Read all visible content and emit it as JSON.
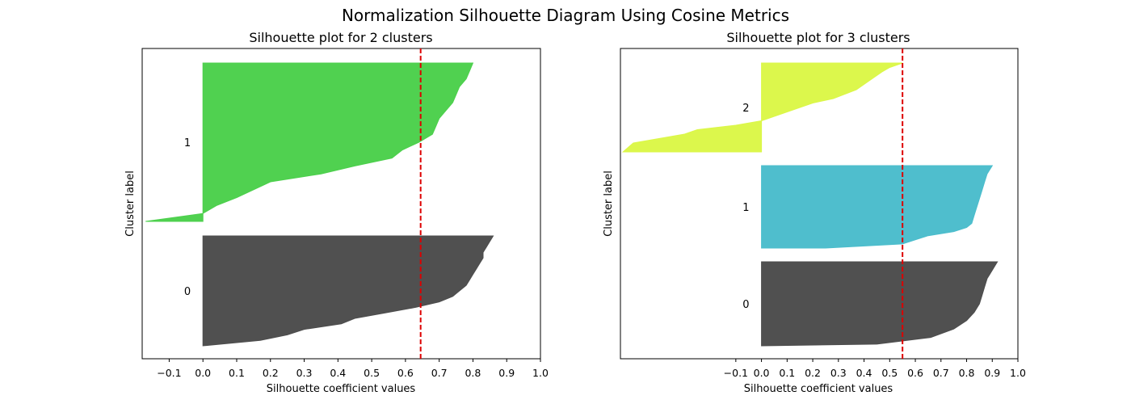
{
  "figure": {
    "title": "Normalization Silhouette Diagram Using Cosine Metrics"
  },
  "chart_data": [
    {
      "type": "area",
      "title": "Silhouette plot for 2 clusters",
      "xlabel": "Silhouette coefficient values",
      "ylabel": "Cluster label",
      "xlim": [
        -0.18,
        1.0
      ],
      "xticks": [
        -0.1,
        0.0,
        0.1,
        0.2,
        0.3,
        0.4,
        0.5,
        0.6,
        0.7,
        0.8,
        0.9,
        1.0
      ],
      "xtick_labels": [
        "−0.1",
        "0.0",
        "0.1",
        "0.2",
        "0.3",
        "0.4",
        "0.5",
        "0.6",
        "0.7",
        "0.8",
        "0.9",
        "1.0"
      ],
      "yticks": [],
      "grid": false,
      "average_silhouette_line": {
        "x": 0.645,
        "color": "#dd0000",
        "style": "dashed"
      },
      "clusters": [
        {
          "label": "0",
          "color": "#4d4d4d",
          "points": [
            [
              0.86,
              0
            ],
            [
              0.85,
              0.05
            ],
            [
              0.84,
              0.1
            ],
            [
              0.83,
              0.15
            ],
            [
              0.83,
              0.2
            ],
            [
              0.82,
              0.25
            ],
            [
              0.81,
              0.3
            ],
            [
              0.8,
              0.35
            ],
            [
              0.79,
              0.4
            ],
            [
              0.78,
              0.45
            ],
            [
              0.76,
              0.5
            ],
            [
              0.74,
              0.55
            ],
            [
              0.7,
              0.6
            ],
            [
              0.63,
              0.65
            ],
            [
              0.54,
              0.7
            ],
            [
              0.45,
              0.75
            ],
            [
              0.41,
              0.8
            ],
            [
              0.3,
              0.85
            ],
            [
              0.25,
              0.9
            ],
            [
              0.17,
              0.95
            ],
            [
              0.0,
              1.0
            ]
          ]
        },
        {
          "label": "1",
          "color": "#4cd04c",
          "points": [
            [
              0.8,
              0
            ],
            [
              0.79,
              0.05
            ],
            [
              0.78,
              0.1
            ],
            [
              0.76,
              0.15
            ],
            [
              0.75,
              0.2
            ],
            [
              0.74,
              0.25
            ],
            [
              0.72,
              0.3
            ],
            [
              0.7,
              0.35
            ],
            [
              0.69,
              0.4
            ],
            [
              0.68,
              0.45
            ],
            [
              0.64,
              0.5
            ],
            [
              0.59,
              0.55
            ],
            [
              0.56,
              0.6
            ],
            [
              0.45,
              0.65
            ],
            [
              0.35,
              0.7
            ],
            [
              0.2,
              0.75
            ],
            [
              0.15,
              0.8
            ],
            [
              0.1,
              0.85
            ],
            [
              0.04,
              0.9
            ],
            [
              0.0,
              0.95
            ],
            [
              -0.17,
              1.0
            ]
          ]
        }
      ]
    },
    {
      "type": "area",
      "title": "Silhouette plot for 3 clusters",
      "xlabel": "Silhouette coefficient values",
      "ylabel": "Cluster label",
      "xlim": [
        -0.55,
        1.0
      ],
      "xticks": [
        -0.1,
        0.0,
        0.1,
        0.2,
        0.3,
        0.4,
        0.5,
        0.6,
        0.7,
        0.8,
        0.9,
        1.0
      ],
      "xtick_labels": [
        "−0.1",
        "0.0",
        "0.1",
        "0.2",
        "0.3",
        "0.4",
        "0.5",
        "0.6",
        "0.7",
        "0.8",
        "0.9",
        "1.0"
      ],
      "yticks": [],
      "grid": false,
      "average_silhouette_line": {
        "x": 0.55,
        "color": "#dd0000",
        "style": "dashed"
      },
      "clusters": [
        {
          "label": "0",
          "color": "#4d4d4d",
          "points": [
            [
              0.92,
              0
            ],
            [
              0.91,
              0.05
            ],
            [
              0.9,
              0.1
            ],
            [
              0.89,
              0.15
            ],
            [
              0.88,
              0.2
            ],
            [
              0.87,
              0.3
            ],
            [
              0.86,
              0.4
            ],
            [
              0.85,
              0.5
            ],
            [
              0.83,
              0.6
            ],
            [
              0.8,
              0.7
            ],
            [
              0.75,
              0.8
            ],
            [
              0.66,
              0.9
            ],
            [
              0.45,
              0.98
            ],
            [
              0.0,
              1.0
            ]
          ]
        },
        {
          "label": "1",
          "color": "#4bbdcc",
          "points": [
            [
              0.9,
              0
            ],
            [
              0.89,
              0.05
            ],
            [
              0.88,
              0.1
            ],
            [
              0.87,
              0.2
            ],
            [
              0.86,
              0.3
            ],
            [
              0.85,
              0.4
            ],
            [
              0.84,
              0.5
            ],
            [
              0.83,
              0.6
            ],
            [
              0.82,
              0.7
            ],
            [
              0.8,
              0.75
            ],
            [
              0.75,
              0.8
            ],
            [
              0.65,
              0.85
            ],
            [
              0.6,
              0.9
            ],
            [
              0.55,
              0.95
            ],
            [
              0.25,
              1.0
            ],
            [
              0.0,
              1.0
            ]
          ]
        },
        {
          "label": "2",
          "color": "#dbf748",
          "points": [
            [
              0.55,
              0
            ],
            [
              0.5,
              0.05
            ],
            [
              0.47,
              0.1
            ],
            [
              0.42,
              0.2
            ],
            [
              0.37,
              0.3
            ],
            [
              0.28,
              0.4
            ],
            [
              0.2,
              0.45
            ],
            [
              0.1,
              0.55
            ],
            [
              0.0,
              0.65
            ],
            [
              -0.1,
              0.7
            ],
            [
              -0.25,
              0.75
            ],
            [
              -0.3,
              0.8
            ],
            [
              -0.4,
              0.85
            ],
            [
              -0.5,
              0.9
            ],
            [
              -0.52,
              0.95
            ],
            [
              -0.54,
              1.0
            ]
          ]
        }
      ]
    }
  ]
}
